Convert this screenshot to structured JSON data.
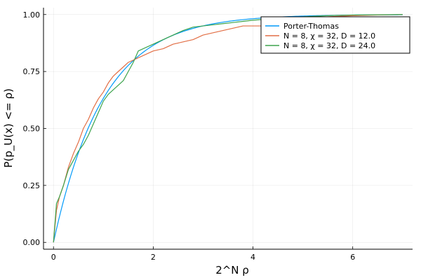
{
  "chart_data": {
    "type": "line",
    "xlabel": "2^N  ρ",
    "ylabel": "P(p_U(x) <= ρ)",
    "xlim": [
      -0.2,
      7.2
    ],
    "ylim": [
      -0.03,
      1.03
    ],
    "x_ticks": [
      0,
      2,
      4,
      6
    ],
    "x_tick_labels": [
      "0",
      "2",
      "4",
      "6"
    ],
    "y_ticks": [
      0,
      0.25,
      0.5,
      0.75,
      1.0
    ],
    "y_tick_labels": [
      "0.00",
      "0.25",
      "0.50",
      "0.75",
      "1.00"
    ],
    "grid": true,
    "legend_position": "top-right",
    "series": [
      {
        "name": "Porter-Thomas",
        "color": "#009AFA",
        "curve": "cdf",
        "x_range": [
          0,
          7
        ]
      },
      {
        "name": "N = 8, χ = 32, D = 12.0",
        "color": "#E26F46",
        "points": [
          [
            0,
            0
          ],
          [
            0.06,
            0.14
          ],
          [
            0.12,
            0.2
          ],
          [
            0.2,
            0.25
          ],
          [
            0.3,
            0.33
          ],
          [
            0.4,
            0.39
          ],
          [
            0.5,
            0.44
          ],
          [
            0.6,
            0.5
          ],
          [
            0.7,
            0.54
          ],
          [
            0.8,
            0.59
          ],
          [
            0.9,
            0.63
          ],
          [
            1.0,
            0.66
          ],
          [
            1.1,
            0.7
          ],
          [
            1.2,
            0.73
          ],
          [
            1.3,
            0.75
          ],
          [
            1.4,
            0.77
          ],
          [
            1.5,
            0.79
          ],
          [
            1.6,
            0.8
          ],
          [
            1.7,
            0.81
          ],
          [
            1.8,
            0.82
          ],
          [
            1.9,
            0.83
          ],
          [
            2.0,
            0.84
          ],
          [
            2.2,
            0.85
          ],
          [
            2.4,
            0.87
          ],
          [
            2.6,
            0.88
          ],
          [
            2.8,
            0.89
          ],
          [
            3.0,
            0.91
          ],
          [
            3.2,
            0.92
          ],
          [
            3.4,
            0.93
          ],
          [
            3.6,
            0.94
          ],
          [
            3.8,
            0.95
          ],
          [
            4.0,
            0.95
          ],
          [
            4.2,
            0.95
          ],
          [
            4.3,
            0.96
          ],
          [
            4.6,
            0.97
          ],
          [
            5.0,
            0.98
          ],
          [
            5.5,
            0.99
          ],
          [
            6.0,
            0.995
          ],
          [
            6.5,
            0.998
          ],
          [
            7.0,
            1.0
          ]
        ]
      },
      {
        "name": "N = 8, χ = 32, D = 24.0",
        "color": "#3DA44D",
        "points": [
          [
            0,
            0
          ],
          [
            0.06,
            0.17
          ],
          [
            0.12,
            0.2
          ],
          [
            0.2,
            0.25
          ],
          [
            0.3,
            0.32
          ],
          [
            0.4,
            0.36
          ],
          [
            0.5,
            0.4
          ],
          [
            0.6,
            0.43
          ],
          [
            0.7,
            0.47
          ],
          [
            0.8,
            0.52
          ],
          [
            0.9,
            0.57
          ],
          [
            1.0,
            0.62
          ],
          [
            1.1,
            0.65
          ],
          [
            1.2,
            0.67
          ],
          [
            1.3,
            0.69
          ],
          [
            1.4,
            0.71
          ],
          [
            1.5,
            0.75
          ],
          [
            1.6,
            0.79
          ],
          [
            1.7,
            0.84
          ],
          [
            1.8,
            0.85
          ],
          [
            1.9,
            0.86
          ],
          [
            2.0,
            0.87
          ],
          [
            2.2,
            0.89
          ],
          [
            2.4,
            0.91
          ],
          [
            2.6,
            0.93
          ],
          [
            2.8,
            0.945
          ],
          [
            3.0,
            0.95
          ],
          [
            3.2,
            0.955
          ],
          [
            3.4,
            0.96
          ],
          [
            3.6,
            0.965
          ],
          [
            3.8,
            0.97
          ],
          [
            4.0,
            0.975
          ],
          [
            4.3,
            0.98
          ],
          [
            4.6,
            0.985
          ],
          [
            5.0,
            0.99
          ],
          [
            5.5,
            0.995
          ],
          [
            6.0,
            0.998
          ],
          [
            6.5,
            0.999
          ],
          [
            7.0,
            1.0
          ]
        ]
      }
    ]
  }
}
